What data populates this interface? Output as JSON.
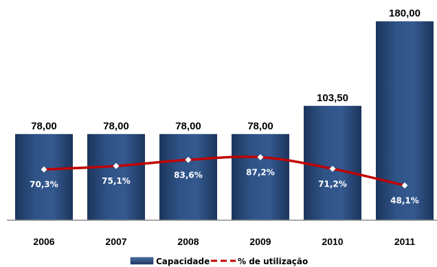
{
  "chart_data": {
    "type": "bar",
    "categories": [
      "2006",
      "2007",
      "2008",
      "2009",
      "2010",
      "2011"
    ],
    "series": [
      {
        "name": "Capacidade",
        "type": "bar",
        "values": [
          78.0,
          78.0,
          78.0,
          78.0,
          103.5,
          180.0
        ],
        "labels": [
          "78,00",
          "78,00",
          "78,00",
          "78,00",
          "103,50",
          "180,00"
        ],
        "color": "#2c4d7e"
      },
      {
        "name": "% de utilização",
        "type": "line",
        "values": [
          70.3,
          75.1,
          83.6,
          87.2,
          71.2,
          48.1
        ],
        "labels": [
          "70,3%",
          "75,1%",
          "83,6%",
          "87,2%",
          "71,2%",
          "48,1%"
        ],
        "color": "#c00000",
        "marker_color": "#ffffff"
      }
    ],
    "title": "",
    "xlabel": "",
    "ylabel": "",
    "ylim": [
      0,
      180
    ],
    "grid": false,
    "legend": {
      "position": "bottom",
      "entries": [
        "Capacidade",
        "% de utilização"
      ]
    },
    "colors": {
      "bar_dark": "#1f3a63",
      "bar_mid": "#2e5185",
      "bar_light": "#4a6fa3",
      "line": "#c00000",
      "axis": "#8c8c8c"
    }
  }
}
